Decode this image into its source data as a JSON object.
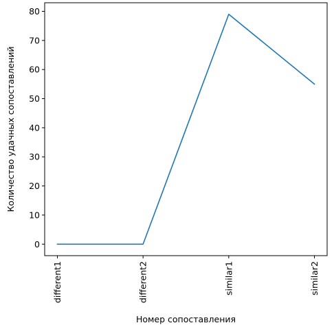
{
  "chart_data": {
    "type": "line",
    "categories": [
      "different1",
      "different2",
      "similar1",
      "similar2"
    ],
    "series": [
      {
        "values": [
          0,
          0,
          79,
          55
        ]
      }
    ],
    "title": "",
    "xlabel": "Номер сопоставления",
    "ylabel": "Количество удачных сопоставлений",
    "ylim": [
      -3.95,
      82.95
    ],
    "yticks": [
      0,
      10,
      20,
      30,
      40,
      50,
      60,
      70,
      80
    ],
    "grid": false,
    "legend": "none",
    "line_color": "#1f77b4",
    "x_tick_rotation": "vertical"
  }
}
